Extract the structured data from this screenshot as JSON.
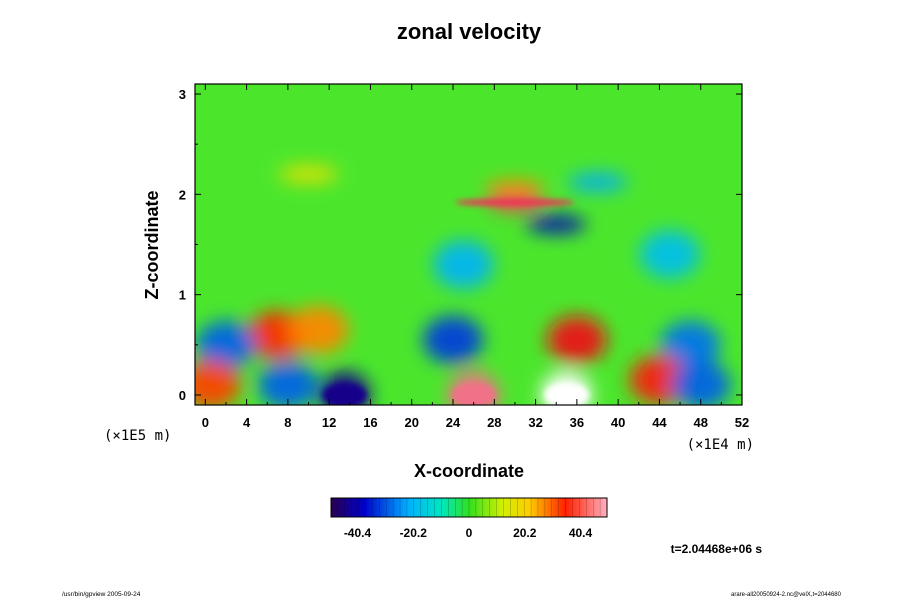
{
  "chart_data": {
    "type": "heatmap",
    "title": "zonal velocity",
    "xlabel": "X-coordinate",
    "ylabel": "Z-coordinate",
    "x_unit_label": "(×1E4 m)",
    "y_unit_label": "(×1E5 m)",
    "x_ticks": [
      "0",
      "4",
      "8",
      "12",
      "16",
      "20",
      "24",
      "28",
      "32",
      "36",
      "40",
      "44",
      "48",
      "52"
    ],
    "y_ticks": [
      "0",
      "1",
      "2",
      "3"
    ],
    "xlim": [
      -1,
      52
    ],
    "ylim": [
      -0.1,
      3.1
    ],
    "colorbar": {
      "ticks": [
        "-40.4",
        "-20.2",
        "0",
        "20.2",
        "40.4"
      ],
      "range": [
        -50,
        50
      ]
    },
    "time_label": "t=2.04468e+06 s",
    "features": [
      {
        "x": 30,
        "z": 1.92,
        "value": 48
      },
      {
        "x": 30,
        "z": 2.05,
        "value": 28
      },
      {
        "x": 34,
        "z": 1.7,
        "value": -42
      },
      {
        "x": 38,
        "z": 2.12,
        "value": -22
      },
      {
        "x": 10,
        "z": 2.2,
        "value": 16
      },
      {
        "x": 25,
        "z": 1.3,
        "value": -20
      },
      {
        "x": 45,
        "z": 1.4,
        "value": -18
      },
      {
        "x": 7,
        "z": 0.6,
        "value": 36
      },
      {
        "x": 11,
        "z": 0.65,
        "value": 28
      },
      {
        "x": 24,
        "z": 0.55,
        "value": -34
      },
      {
        "x": 36,
        "z": 0.55,
        "value": 42
      },
      {
        "x": 2,
        "z": 0.5,
        "value": -30
      },
      {
        "x": 47,
        "z": 0.5,
        "value": -28
      },
      {
        "x": 8,
        "z": 0.1,
        "value": -30
      },
      {
        "x": 13.5,
        "z": 0.0,
        "value": -48
      },
      {
        "x": 26,
        "z": 0.0,
        "value": 50
      },
      {
        "x": 35,
        "z": 0.0,
        "value": 55
      },
      {
        "x": 0.5,
        "z": 0.1,
        "value": 34
      },
      {
        "x": 44,
        "z": 0.15,
        "value": 38
      },
      {
        "x": 48,
        "z": 0.1,
        "value": -30
      }
    ]
  },
  "footer": {
    "left": "/usr/bin/gpview 2005-09-24",
    "right": "arare-all20050924-2.nc@velX,t=2044680"
  }
}
